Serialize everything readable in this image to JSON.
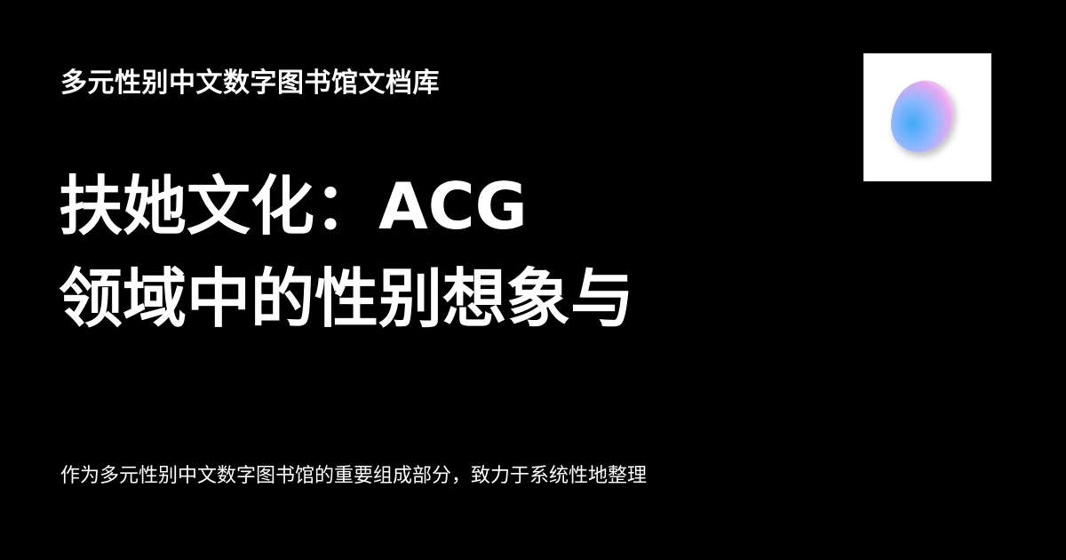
{
  "site": {
    "name": "多元性别中文数字图书馆文档库"
  },
  "article": {
    "title_lines": [
      "扶她文化：ACG",
      "领域中的性别想象与"
    ],
    "description": "作为多元性别中文数字图书馆的重要组成部分，致力于系统性地整理"
  },
  "logo": {
    "icon": "gradient-blob-icon",
    "background": "#ffffff",
    "colors": [
      "#3fa9f5",
      "#8fb8ff",
      "#e6a8f0"
    ]
  },
  "page": {
    "background": "#000000",
    "text_color": "#ffffff"
  }
}
